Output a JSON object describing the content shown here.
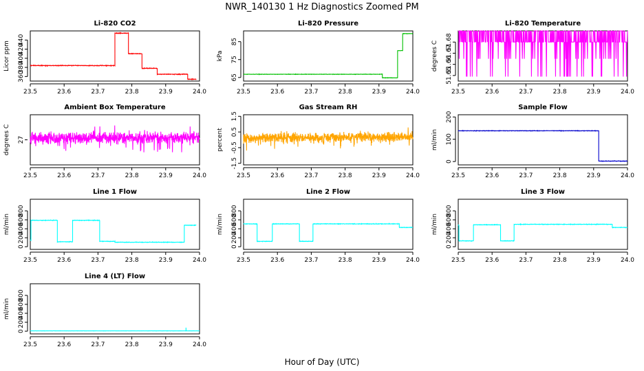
{
  "figure": {
    "title": "NWR_140130  1 Hz Diagnostics Zoomed PM",
    "xlabel": "Hour of Day (UTC)"
  },
  "chart_data": [
    {
      "type": "line",
      "title": "Li-820 CO2",
      "ylabel": "Licor ppm",
      "color": "#ff0000",
      "xlim": [
        23.5,
        24.0
      ],
      "xticks": [
        23.5,
        23.6,
        23.7,
        23.8,
        23.9,
        24.0
      ],
      "ylim": [
        350,
        460
      ],
      "yticks": [
        360,
        380,
        400,
        420,
        440
      ],
      "mode": "steps",
      "noise": 1.0,
      "segments": [
        [
          23.5,
          23.75,
          384
        ],
        [
          23.75,
          23.79,
          455
        ],
        [
          23.79,
          23.83,
          410
        ],
        [
          23.83,
          23.875,
          378
        ],
        [
          23.875,
          23.965,
          365
        ],
        [
          23.965,
          23.99,
          354
        ]
      ]
    },
    {
      "type": "line",
      "title": "Li-820 Pressure",
      "ylabel": "kPa",
      "color": "#00c000",
      "xlim": [
        23.5,
        24.0
      ],
      "xticks": [
        23.5,
        23.6,
        23.7,
        23.8,
        23.9,
        24.0
      ],
      "ylim": [
        63,
        91
      ],
      "yticks": [
        65,
        75,
        85
      ],
      "mode": "steps",
      "noise": 0.15,
      "segments": [
        [
          23.5,
          23.91,
          66.8
        ],
        [
          23.91,
          23.955,
          64.8
        ],
        [
          23.955,
          23.97,
          80.0
        ],
        [
          23.97,
          24.0,
          89.5
        ]
      ]
    },
    {
      "type": "line",
      "title": "Li-820 Temperature",
      "ylabel": "degrees C",
      "color": "#ff00ff",
      "xlim": [
        23.5,
        24.0
      ],
      "xticks": [
        23.5,
        23.6,
        23.7,
        23.8,
        23.9,
        24.0
      ],
      "ylim": [
        51.645,
        51.69
      ],
      "yticks": [
        51.65,
        51.66,
        51.67,
        51.68
      ],
      "mode": "levels",
      "levels": [
        51.649,
        51.665,
        51.68,
        51.69
      ],
      "noise_seed": 3
    },
    {
      "type": "line",
      "title": "Ambient Box Temperature",
      "ylabel": "degrees C",
      "color": "#ff00ff",
      "xlim": [
        23.5,
        24.0
      ],
      "xticks": [
        23.5,
        23.6,
        23.7,
        23.8,
        23.9,
        24.0
      ],
      "ylim": [
        26.75,
        27.25
      ],
      "yticks": [
        27.0
      ],
      "mode": "noise",
      "center": 27.02,
      "noise": 0.08,
      "spikes": 0.15,
      "noise_seed": 7
    },
    {
      "type": "line",
      "title": "Gas Stream RH",
      "ylabel": "percent",
      "color": "#ffa500",
      "xlim": [
        23.5,
        24.0
      ],
      "xticks": [
        23.5,
        23.6,
        23.7,
        23.8,
        23.9,
        24.0
      ],
      "ylim": [
        -1.6,
        1.6
      ],
      "yticks": [
        -1.5,
        -0.5,
        0.5,
        1.5
      ],
      "mode": "noise",
      "center": 0.15,
      "noise": 0.45,
      "spikes": 0.6,
      "noise_seed": 11
    },
    {
      "type": "line",
      "title": "Sample Flow",
      "ylabel": "ml/min",
      "color": "#0000cc",
      "xlim": [
        23.5,
        24.0
      ],
      "xticks": [
        23.5,
        23.6,
        23.7,
        23.8,
        23.9,
        24.0
      ],
      "ylim": [
        -15,
        210
      ],
      "yticks": [
        0,
        100,
        200
      ],
      "mode": "steps",
      "noise": 1.5,
      "segments": [
        [
          23.5,
          23.915,
          138
        ],
        [
          23.915,
          24.0,
          2
        ]
      ]
    },
    {
      "type": "line",
      "title": "Line 1 Flow",
      "ylabel": "ml/min",
      "color": "#00ffff",
      "xlim": [
        23.5,
        24.0
      ],
      "xticks": [
        23.5,
        23.6,
        23.7,
        23.8,
        23.9,
        24.0
      ],
      "ylim": [
        -60,
        1060
      ],
      "yticks": [
        0,
        200,
        400,
        600,
        800
      ],
      "mode": "steps",
      "noise": 8,
      "segments": [
        [
          23.5,
          23.502,
          150
        ],
        [
          23.502,
          23.58,
          590
        ],
        [
          23.58,
          23.625,
          110
        ],
        [
          23.625,
          23.705,
          590
        ],
        [
          23.705,
          23.75,
          120
        ],
        [
          23.75,
          23.955,
          100
        ],
        [
          23.955,
          23.99,
          480
        ]
      ]
    },
    {
      "type": "line",
      "title": "Line 2 Flow",
      "ylabel": "ml/min",
      "color": "#00ffff",
      "xlim": [
        23.5,
        24.0
      ],
      "xticks": [
        23.5,
        23.6,
        23.7,
        23.8,
        23.9,
        24.0
      ],
      "ylim": [
        -60,
        1060
      ],
      "yticks": [
        0,
        200,
        400,
        600,
        800
      ],
      "mode": "steps",
      "noise": 8,
      "segments": [
        [
          23.5,
          23.54,
          510
        ],
        [
          23.54,
          23.585,
          120
        ],
        [
          23.585,
          23.665,
          510
        ],
        [
          23.665,
          23.705,
          120
        ],
        [
          23.705,
          23.96,
          510
        ],
        [
          23.96,
          24.0,
          430
        ]
      ]
    },
    {
      "type": "line",
      "title": "Line 3 Flow",
      "ylabel": "ml/min",
      "color": "#00ffff",
      "xlim": [
        23.5,
        24.0
      ],
      "xticks": [
        23.5,
        23.6,
        23.7,
        23.8,
        23.9,
        24.0
      ],
      "ylim": [
        -60,
        1060
      ],
      "yticks": [
        0,
        200,
        400,
        600,
        800
      ],
      "mode": "steps",
      "noise": 8,
      "segments": [
        [
          23.5,
          23.502,
          480
        ],
        [
          23.502,
          23.545,
          130
        ],
        [
          23.545,
          23.625,
          490
        ],
        [
          23.625,
          23.665,
          130
        ],
        [
          23.665,
          23.955,
          500
        ],
        [
          23.955,
          24.0,
          430
        ]
      ]
    },
    {
      "type": "line",
      "title": "Line 4 (LT) Flow",
      "ylabel": "ml/min",
      "color": "#00ffff",
      "xlim": [
        23.5,
        24.0
      ],
      "xticks": [
        23.5,
        23.6,
        23.7,
        23.8,
        23.9,
        24.0
      ],
      "ylim": [
        -60,
        1060
      ],
      "yticks": [
        0,
        200,
        400,
        600,
        800
      ],
      "mode": "steps",
      "noise": 3,
      "spike_at": [
        23.96,
        80
      ],
      "segments": [
        [
          23.5,
          24.0,
          8
        ]
      ]
    }
  ]
}
